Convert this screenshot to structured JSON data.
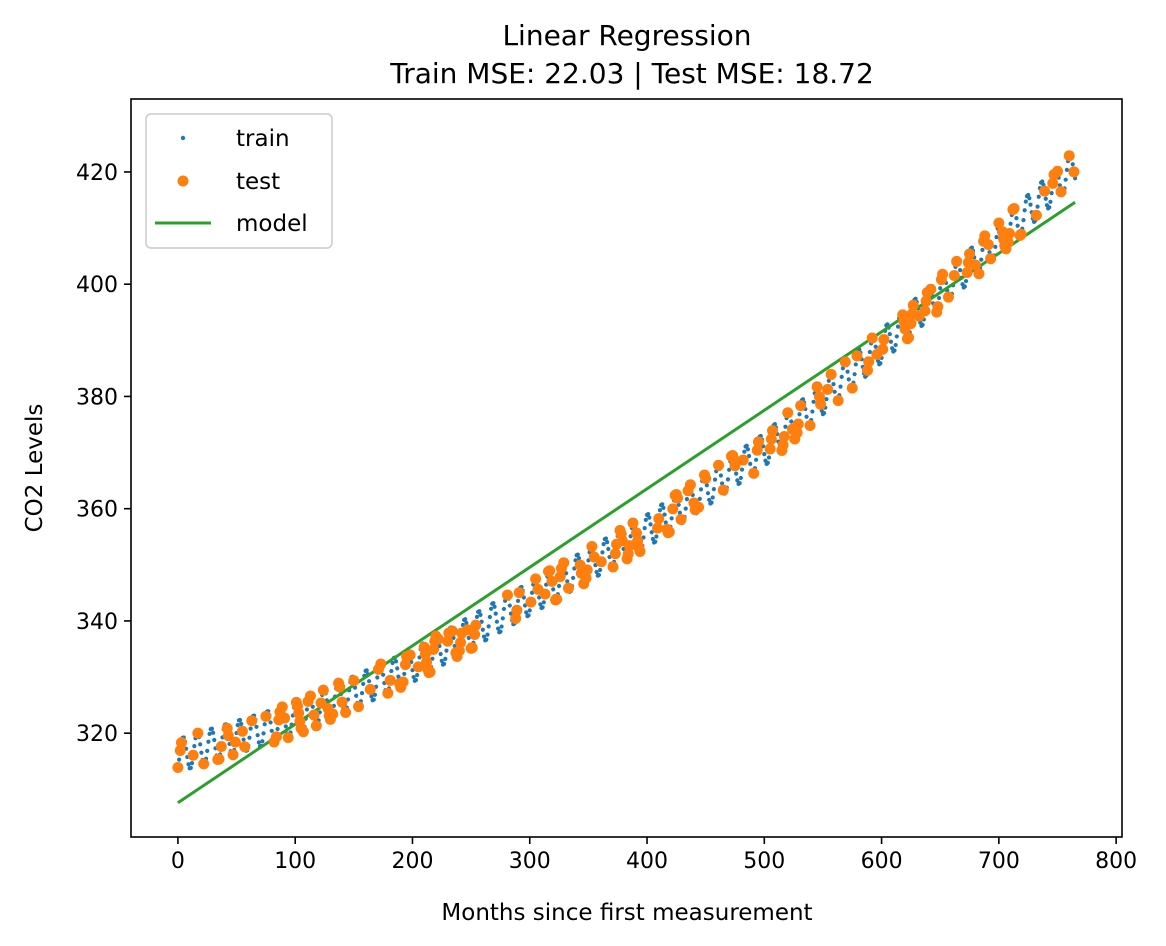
{
  "chart_data": {
    "type": "scatter",
    "title": "Linear Regression",
    "subtitle": "Train MSE: 22.03 | Test MSE: 18.72",
    "xlabel": "Months since first measurement",
    "ylabel": "CO2 Levels",
    "xlim": [
      -40,
      805
    ],
    "ylim": [
      301.5,
      433
    ],
    "xticks": [
      0,
      100,
      200,
      300,
      400,
      500,
      600,
      700,
      800
    ],
    "yticks": [
      320,
      340,
      360,
      380,
      400,
      420
    ],
    "grid": false,
    "legend_position": "upper-left",
    "x_range": [
      0,
      765
    ],
    "model": {
      "x": [
        0,
        765
      ],
      "y": [
        307.6,
        414.6
      ]
    },
    "series": [
      {
        "name": "train",
        "kind": "points",
        "marker": "small-dot",
        "color": "#1f77b4",
        "seasonal_amplitude": 3.0
      },
      {
        "name": "test",
        "kind": "points",
        "marker": "dot",
        "color": "#ff7f0e",
        "seasonal_amplitude": 3.0
      },
      {
        "name": "model",
        "kind": "line",
        "color": "#2ca02c"
      }
    ],
    "trend_points": [
      {
        "x": 0,
        "y": 316.0
      },
      {
        "x": 100,
        "y": 322.5
      },
      {
        "x": 200,
        "y": 332.0
      },
      {
        "x": 300,
        "y": 344.0
      },
      {
        "x": 400,
        "y": 356.0
      },
      {
        "x": 500,
        "y": 370.5
      },
      {
        "x": 600,
        "y": 389.0
      },
      {
        "x": 700,
        "y": 408.0
      },
      {
        "x": 765,
        "y": 421.0
      }
    ]
  }
}
